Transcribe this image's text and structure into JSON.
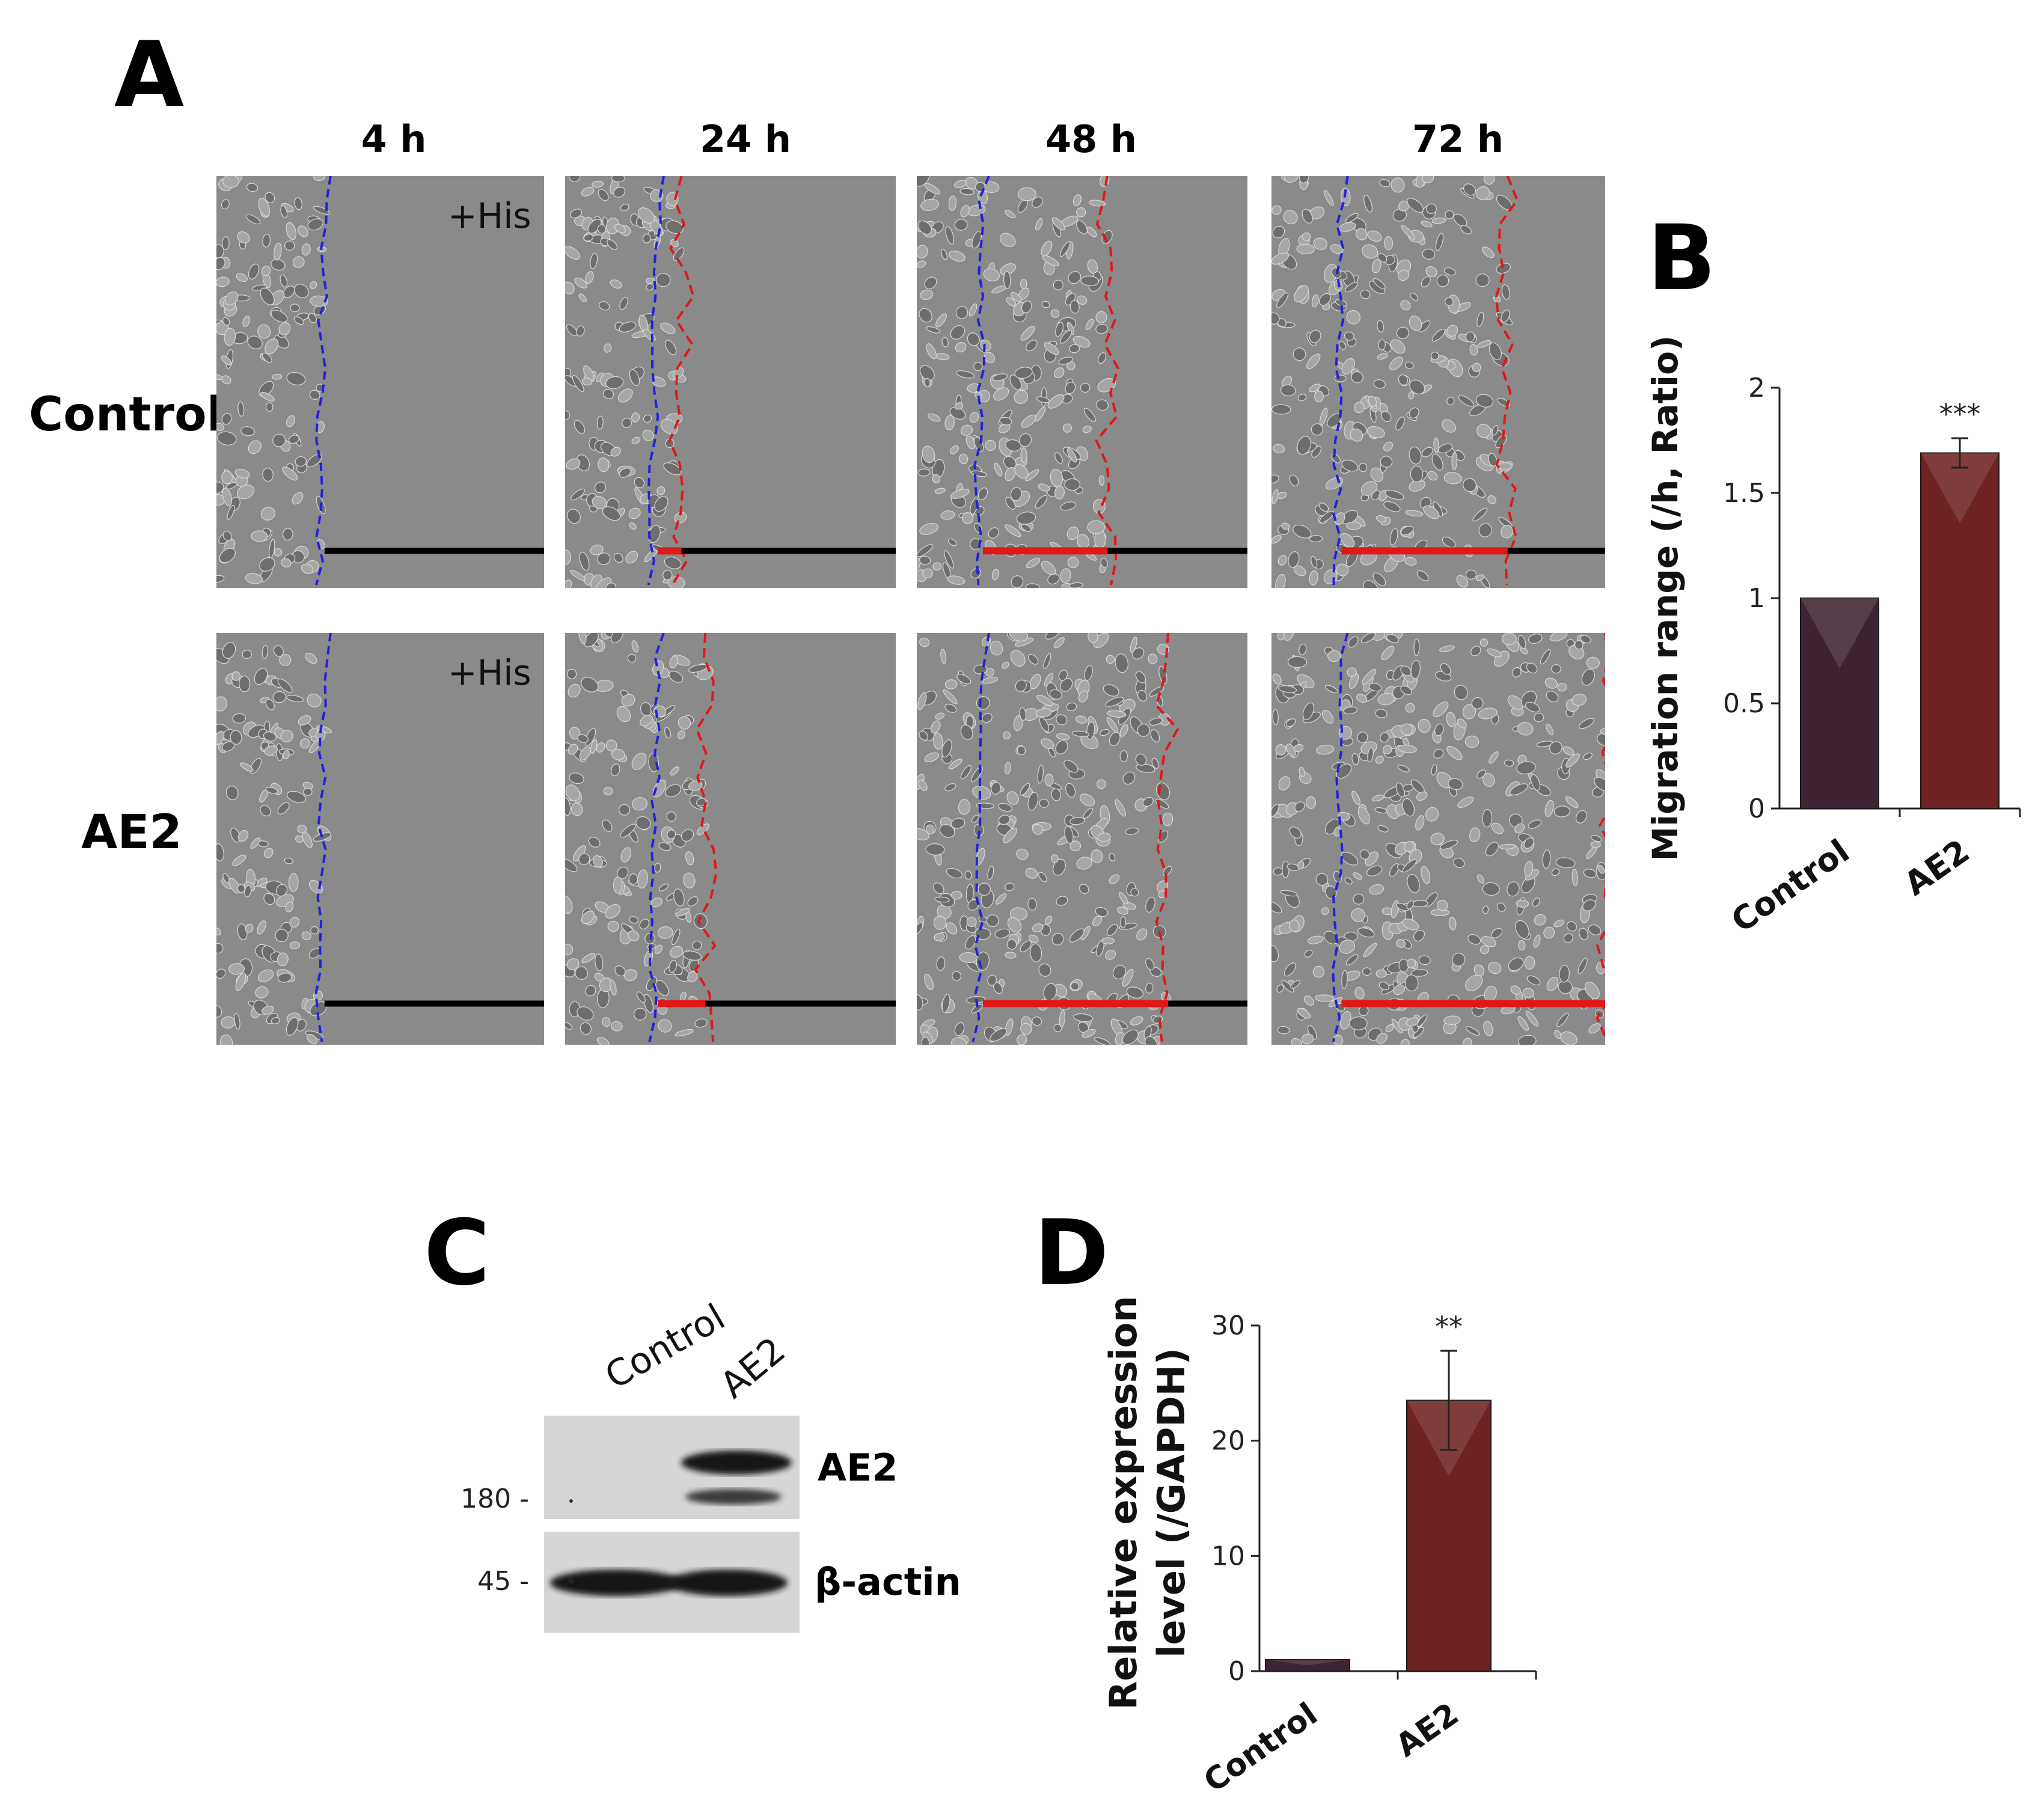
{
  "panels": {
    "A": "A",
    "B": "B",
    "C": "C",
    "D": "D"
  },
  "panel_a": {
    "time_labels": [
      "4 h",
      "24 h",
      "48 h",
      "72 h"
    ],
    "row_labels": [
      "Control",
      "AE2"
    ],
    "treatment_label": "+His",
    "colors": {
      "initial_edge": "#2222dd",
      "migration_front": "#e0181a",
      "scale_bar": "#000000",
      "field": "#8a8a8a"
    },
    "migration_fraction": {
      "Control": [
        0.0,
        0.1,
        0.47,
        0.63
      ],
      "AE2": [
        0.0,
        0.2,
        0.7,
        1.0
      ]
    }
  },
  "panel_c": {
    "lanes": [
      "Control",
      "AE2"
    ],
    "bands": [
      "AE2",
      "β-actin"
    ],
    "markers": [
      "180 -",
      "45 -"
    ]
  },
  "chart_data": [
    {
      "panel": "B",
      "type": "bar",
      "categories": [
        "Control",
        "AE2"
      ],
      "values": [
        1.0,
        1.69
      ],
      "error": [
        0,
        0.07
      ],
      "significance": [
        "",
        "***"
      ],
      "ylabel": "Migration range (/h, Ratio)",
      "ylim": [
        0,
        2
      ],
      "yticks": [
        "0",
        "0.5",
        "1",
        "1.5",
        "2"
      ],
      "colors": [
        "#3e2432",
        "#6e2222"
      ],
      "grid": false
    },
    {
      "panel": "D",
      "type": "bar",
      "categories": [
        "Control",
        "AE2"
      ],
      "values": [
        1.0,
        23.5
      ],
      "error": [
        0,
        4.3
      ],
      "significance": [
        "",
        "**"
      ],
      "ylabel_lines": [
        "Relative expression",
        "level (/GAPDH)"
      ],
      "ylim": [
        0,
        30
      ],
      "yticks": [
        "0",
        "10",
        "20",
        "30"
      ],
      "colors": [
        "#3e2432",
        "#6e2222"
      ],
      "grid": false
    }
  ]
}
